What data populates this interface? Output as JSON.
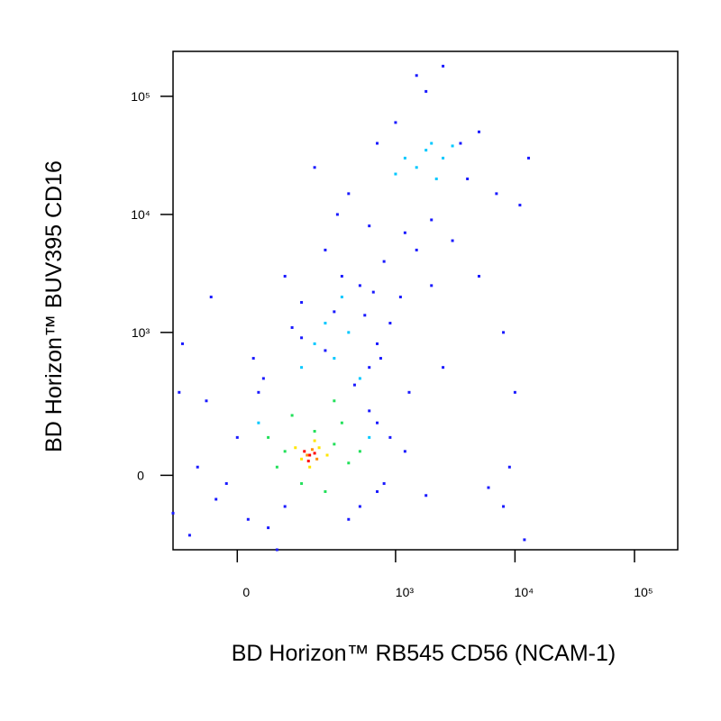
{
  "chart_data": {
    "type": "scatter",
    "xlabel": "BD Horizon™ RB545 CD56 (NCAM-1)",
    "ylabel": "BD Horizon™ BUV395 CD16",
    "scale": "biexponential",
    "xlim": [
      -150,
      230000
    ],
    "ylim": [
      -250,
      240000
    ],
    "xticks": [
      0,
      {
        "value": 1000,
        "label": "10³"
      },
      {
        "value": 10000,
        "label": "10⁴"
      },
      {
        "value": 100000,
        "label": "10⁵"
      }
    ],
    "yticks": [
      0,
      {
        "value": 1000,
        "label": "10³"
      },
      {
        "value": 10000,
        "label": "10⁴"
      },
      {
        "value": 100000,
        "label": "10⁵"
      }
    ],
    "series": [
      {
        "color": "#1a1aff",
        "x": [
          -80,
          -40,
          20,
          60,
          400,
          700,
          900,
          1200,
          -100,
          -130,
          30,
          150,
          300,
          500,
          800,
          1200,
          2000,
          3000,
          5000,
          8000,
          6000,
          8000,
          9000,
          12000,
          10000,
          7000,
          11000,
          13000,
          5000,
          1000,
          1500,
          2500,
          200,
          100,
          -50,
          -120,
          50,
          700,
          2000,
          4000,
          3500,
          700,
          1800,
          400,
          600,
          1500,
          250,
          150,
          900,
          1300,
          2500,
          1800,
          -150,
          -60,
          80,
          600,
          700,
          40,
          500,
          0,
          -20,
          800,
          600,
          100,
          450,
          350,
          250,
          550,
          1100,
          650,
          120,
          320,
          750
        ],
        "values": [
          20,
          -60,
          -120,
          -150,
          -120,
          -40,
          100,
          60,
          -180,
          300,
          600,
          900,
          1500,
          2500,
          4000,
          7000,
          9000,
          6000,
          3000,
          1000,
          -30,
          -80,
          20,
          -200,
          300,
          15000,
          12000,
          30000,
          50000,
          60000,
          150000,
          180000,
          25000,
          3000,
          2000,
          800,
          400,
          800,
          2500,
          20000,
          40000,
          40000,
          110000,
          15000,
          8000,
          5000,
          5000,
          1800,
          1200,
          300,
          500,
          -50,
          -100,
          250,
          -250,
          200,
          150,
          300,
          -80,
          100,
          -20,
          -20,
          500,
          -80,
          350,
          3000,
          700,
          1400,
          2000,
          2200,
          1100,
          10000,
          600
        ]
      },
      {
        "color": "#00c8ff",
        "x": [
          1200,
          1800,
          2500,
          3000,
          1500,
          2000,
          1000,
          2200,
          200,
          300,
          400,
          250,
          150,
          500,
          350,
          40,
          600
        ],
        "values": [
          30000,
          35000,
          30000,
          38000,
          25000,
          40000,
          22000,
          20000,
          800,
          600,
          1000,
          1200,
          500,
          400,
          2000,
          150,
          100
        ]
      },
      {
        "color": "#22e05a",
        "x": [
          100,
          300,
          200,
          80,
          400,
          150,
          250,
          350,
          60,
          500,
          120,
          300
        ],
        "values": [
          60,
          80,
          120,
          20,
          30,
          -20,
          -40,
          150,
          100,
          60,
          180,
          250
        ]
      },
      {
        "color": "#ffe600",
        "x": [
          150,
          220,
          180,
          260,
          130,
          200
        ],
        "values": [
          40,
          70,
          20,
          50,
          70,
          90
        ]
      },
      {
        "color": "#ff8c00",
        "x": [
          170,
          210,
          190
        ],
        "values": [
          50,
          40,
          65
        ]
      },
      {
        "color": "#ff0000",
        "x": [
          180,
          200,
          175,
          160
        ],
        "values": [
          50,
          55,
          35,
          60
        ]
      }
    ]
  }
}
